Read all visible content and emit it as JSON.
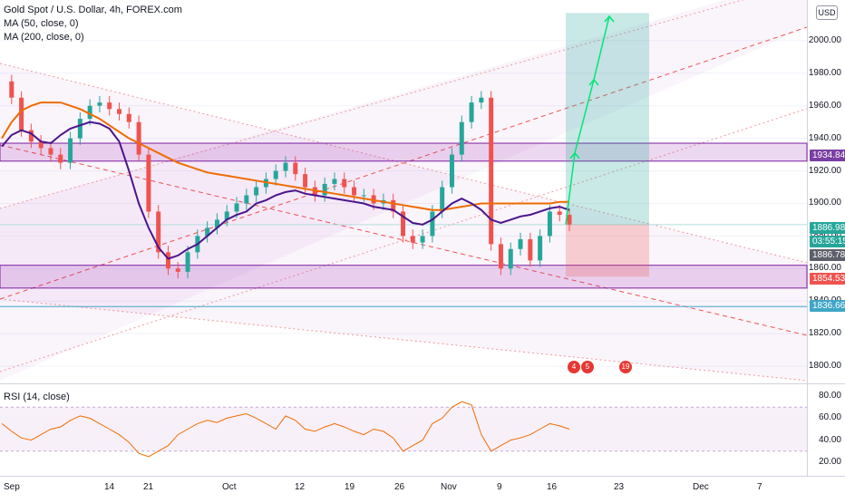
{
  "legend": {
    "symbol": "Gold Spot / U.S. Dollar, 4h, FOREX.com",
    "ma50": "MA (50, close, 0)",
    "ma200": "MA (200, close, 0)"
  },
  "currency_button": "USD",
  "price_ticks": [
    "2000.00",
    "1980.00",
    "1960.00",
    "1940.00",
    "1920.00",
    "1900.00",
    "1880.00",
    "1860.00",
    "1840.00",
    "1820.00",
    "1800.00"
  ],
  "price_tags": [
    {
      "label": "1934.84",
      "color": "#7b3fa3"
    },
    {
      "label": "1886.98",
      "color": "#26a69a"
    },
    {
      "label": "03:55:15",
      "color": "#26a69a"
    },
    {
      "label": "1886.78",
      "color": "#5d606b"
    },
    {
      "label": "1854.53",
      "color": "#ef5350"
    },
    {
      "label": "1836.66",
      "color": "#3fa6c6"
    }
  ],
  "date_labels": [
    "Sep",
    "14",
    "21",
    "Oct",
    "12",
    "19",
    "26",
    "Nov",
    "9",
    "16",
    "23",
    "Dec",
    "7"
  ],
  "rsi": {
    "label": "RSI (14, close)",
    "ticks": [
      "80.00",
      "60.00",
      "40.00",
      "20.00"
    ]
  },
  "events": [
    {
      "label": "4"
    },
    {
      "label": "5"
    },
    {
      "label": "19"
    }
  ],
  "chart_data": {
    "type": "line",
    "title": "Gold Spot / U.S. Dollar, 4h, FOREX.com",
    "ylim": [
      1790,
      2025
    ],
    "x_labels": [
      "Sep",
      "14",
      "21",
      "Oct",
      "12",
      "19",
      "26",
      "Nov",
      "9",
      "16",
      "23",
      "Dec",
      "7"
    ],
    "price_close": [
      1975,
      1965,
      1945,
      1938,
      1934,
      1930,
      1925,
      1940,
      1952,
      1960,
      1962,
      1958,
      1955,
      1950,
      1930,
      1895,
      1870,
      1860,
      1858,
      1870,
      1880,
      1885,
      1890,
      1895,
      1900,
      1905,
      1910,
      1915,
      1920,
      1925,
      1918,
      1910,
      1905,
      1912,
      1915,
      1910,
      1905,
      1905,
      1900,
      1902,
      1895,
      1880,
      1876,
      1880,
      1895,
      1910,
      1930,
      1950,
      1962,
      1965,
      1875,
      1860,
      1872,
      1878,
      1865,
      1880,
      1895,
      1893,
      1887
    ],
    "ma50": [
      1935,
      1942,
      1945,
      1943,
      1938,
      1937,
      1942,
      1946,
      1948,
      1950,
      1949,
      1946,
      1938,
      1920,
      1900,
      1885,
      1873,
      1866,
      1868,
      1872,
      1875,
      1880,
      1885,
      1890,
      1893,
      1895,
      1900,
      1902,
      1905,
      1907,
      1908,
      1906,
      1905,
      1904,
      1903,
      1902,
      1901,
      1900,
      1898,
      1897,
      1896,
      1892,
      1888,
      1887,
      1890,
      1895,
      1900,
      1903,
      1900,
      1896,
      1890,
      1888,
      1890,
      1892,
      1893,
      1895,
      1897,
      1898,
      1896
    ],
    "ma200": [
      1940,
      1950,
      1957,
      1960,
      1962,
      1962,
      1962,
      1960,
      1958,
      1955,
      1952,
      1948,
      1944,
      1940,
      1937,
      1934,
      1931,
      1928,
      1925,
      1923,
      1921,
      1919,
      1918,
      1917,
      1916,
      1915,
      1914,
      1913,
      1912,
      1911,
      1910,
      1909,
      1908,
      1907,
      1906,
      1905,
      1904,
      1903,
      1902,
      1901,
      1900,
      1899,
      1898,
      1897,
      1896,
      1896,
      1897,
      1898,
      1899,
      1900,
      1900,
      1900,
      1900,
      1900,
      1900,
      1900,
      1900,
      1901,
      1901
    ],
    "rsi": [
      55,
      48,
      42,
      40,
      45,
      50,
      52,
      58,
      62,
      60,
      55,
      50,
      45,
      38,
      28,
      25,
      30,
      35,
      45,
      50,
      55,
      58,
      56,
      60,
      62,
      64,
      60,
      55,
      50,
      62,
      58,
      50,
      48,
      52,
      55,
      52,
      48,
      45,
      50,
      48,
      42,
      30,
      35,
      40,
      55,
      60,
      70,
      75,
      72,
      45,
      30,
      35,
      40,
      42,
      45,
      50,
      55,
      53,
      50
    ],
    "levels": [
      {
        "name": "resistance-zone",
        "low": 1926,
        "high": 1937
      },
      {
        "name": "support-zone",
        "low": 1848,
        "high": 1862
      },
      {
        "name": "target",
        "value": 2017
      },
      {
        "name": "entry",
        "value": 1887
      },
      {
        "name": "stop",
        "value": 1855
      },
      {
        "name": "support-line",
        "value": 1836.66
      }
    ]
  }
}
